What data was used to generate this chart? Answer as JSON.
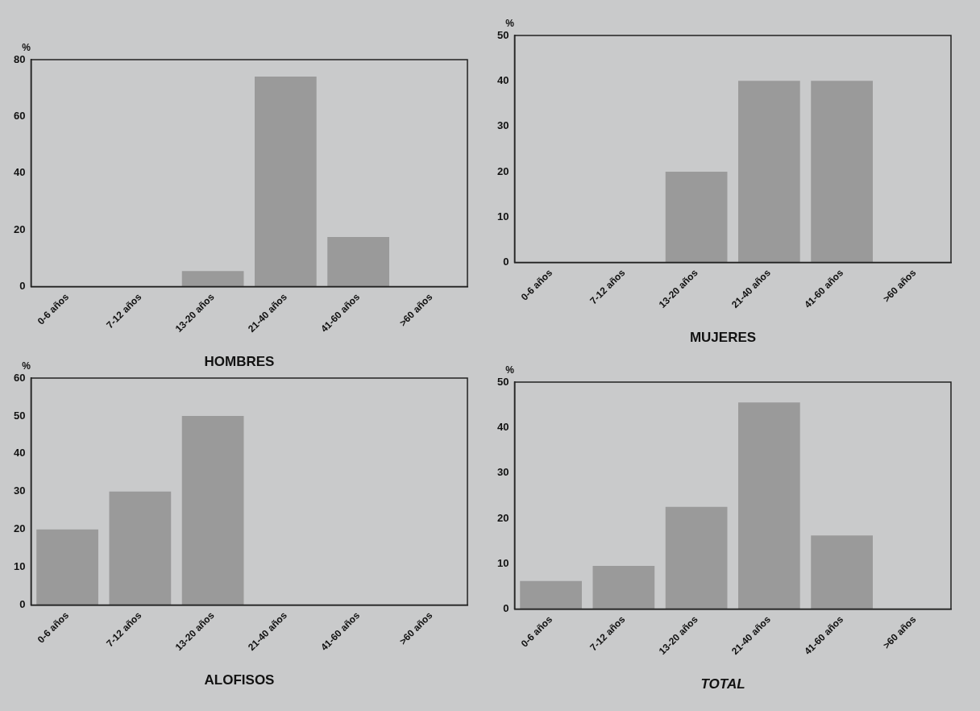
{
  "chart_data": [
    {
      "type": "bar",
      "title": "HOMBRES",
      "ylabel": "%",
      "categories": [
        "0-6 años",
        "7-12 años",
        "13-20 años",
        "21-40 años",
        "41-60 años",
        ">60 años"
      ],
      "values": [
        0,
        0,
        5.5,
        74,
        17.5,
        0
      ],
      "color": "#9a9a9a",
      "ylim": [
        0,
        80
      ],
      "yticks": [
        0,
        20,
        40,
        60,
        80
      ]
    },
    {
      "type": "bar",
      "title": "MUJERES",
      "ylabel": "%",
      "categories": [
        "0-6 años",
        "7-12 años",
        "13-20 años",
        "21-40 años",
        "41-60 años",
        ">60 años"
      ],
      "values": [
        0,
        0,
        20,
        40,
        40,
        0
      ],
      "color": "#9a9a9a",
      "ylim": [
        0,
        50
      ],
      "yticks": [
        0,
        10,
        20,
        30,
        40,
        50
      ]
    },
    {
      "type": "bar",
      "title": "ALOFISOS",
      "ylabel": "%",
      "categories": [
        "0-6 años",
        "7-12 años",
        "13-20 años",
        "21-40 años",
        "41-60 años",
        ">60 años"
      ],
      "values": [
        20,
        30,
        50,
        0,
        0,
        0
      ],
      "color": "#9a9a9a",
      "ylim": [
        0,
        60
      ],
      "yticks": [
        0,
        10,
        20,
        30,
        40,
        50,
        60
      ]
    },
    {
      "type": "bar",
      "title": "TOTAL",
      "ylabel": "%",
      "categories": [
        "0-6 años",
        "7-12 años",
        "13-20 años",
        "21-40 años",
        "41-60 años",
        ">60 años"
      ],
      "values": [
        6.2,
        9.5,
        22.5,
        45.5,
        16.2,
        0
      ],
      "color": "#9a9a9a",
      "ylim": [
        0,
        50
      ],
      "yticks": [
        0,
        10,
        20,
        30,
        40,
        50
      ]
    }
  ]
}
